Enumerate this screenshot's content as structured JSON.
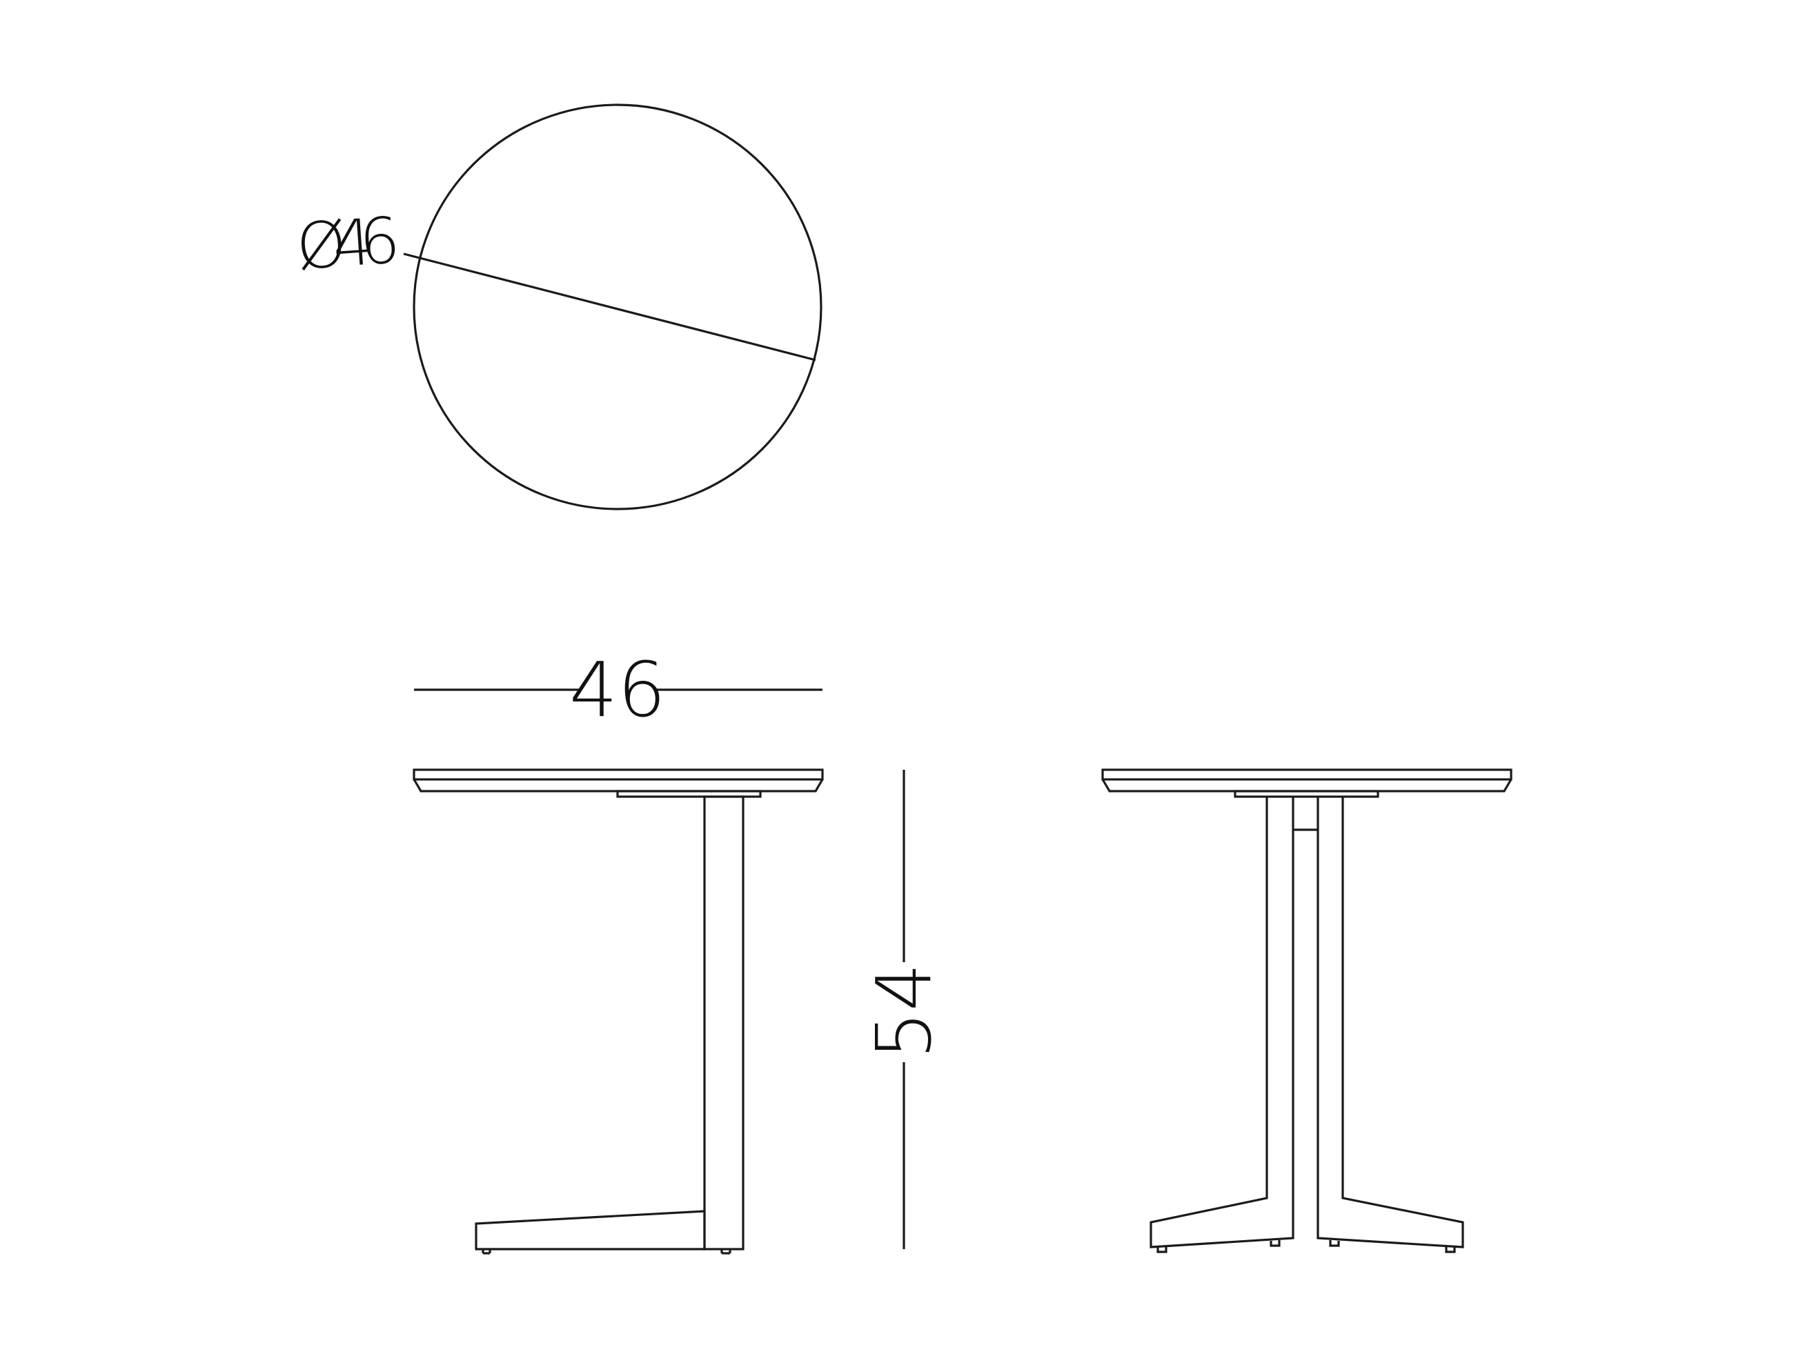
{
  "drawing": {
    "top_view_diameter_label": "Ø46",
    "front_view_width_label": "46",
    "front_view_height_label": "54"
  },
  "colors": {
    "line": "#1a1a1a",
    "background": "#ffffff"
  }
}
